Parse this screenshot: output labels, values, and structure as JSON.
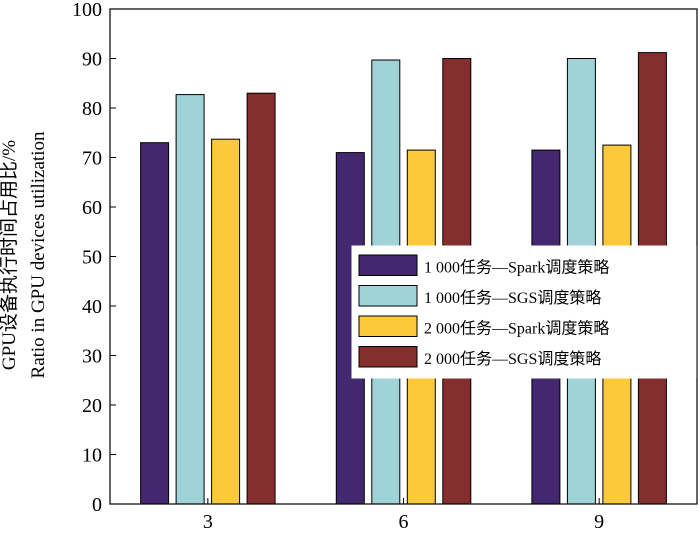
{
  "chart_data": {
    "type": "bar",
    "categories": [
      "3",
      "6",
      "9"
    ],
    "series": [
      {
        "name": "1 000任务—Spark调度策略",
        "color": "#43286f",
        "values": [
          73,
          71,
          71.5
        ]
      },
      {
        "name": "1 000任务—SGS调度策略",
        "color": "#9fd3d8",
        "values": [
          82.7,
          89.7,
          90
        ]
      },
      {
        "name": "2 000任务—Spark调度策略",
        "color": "#fbc93a",
        "values": [
          73.7,
          71.5,
          72.5
        ]
      },
      {
        "name": "2 000任务—SGS调度策略",
        "color": "#842f2e",
        "values": [
          83,
          90,
          91.2
        ]
      }
    ],
    "ylim": [
      0,
      100
    ],
    "yticks": [
      0,
      10,
      20,
      30,
      40,
      50,
      60,
      70,
      80,
      90,
      100
    ],
    "ylabel_lines": [
      "GPU设备执行时间占用比/%",
      "Ratio in GPU devices utilization"
    ],
    "xlabel": "",
    "title": "",
    "legend_position": "center-right",
    "grid": false
  }
}
